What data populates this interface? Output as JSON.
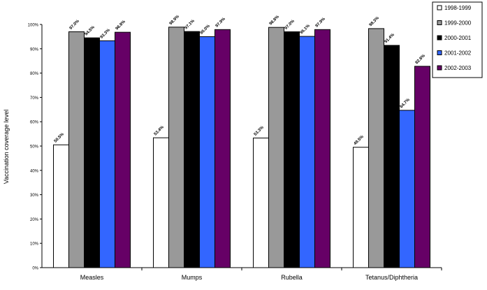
{
  "chart_data": {
    "type": "bar",
    "title": "",
    "xlabel": "",
    "ylabel": "Vaccination coverage level",
    "ylim": [
      0,
      100
    ],
    "yticks": [
      "0%",
      "10%",
      "20%",
      "30%",
      "40%",
      "50%",
      "60%",
      "70%",
      "80%",
      "90%",
      "100%"
    ],
    "grid": false,
    "legend_position": "top-right",
    "categories": [
      "Measles",
      "Mumps",
      "Rubella",
      "Tetanus/Diphtheria"
    ],
    "series": [
      {
        "name": "1998-1999",
        "color": "#ffffff",
        "values": [
          50.5,
          53.4,
          53.3,
          49.5
        ],
        "labels": [
          "50.5%",
          "53.4%",
          "53.3%",
          "49.5%"
        ]
      },
      {
        "name": "1999-2000",
        "color": "#999999",
        "values": [
          97.0,
          98.9,
          98.8,
          98.3
        ],
        "labels": [
          "97.0%",
          "98.9%",
          "98.8%",
          "98.3%"
        ]
      },
      {
        "name": "2000-2001",
        "color": "#000000",
        "values": [
          94.5,
          97.1,
          97.0,
          91.4
        ],
        "labels": [
          "94.5%",
          "97.1%",
          "97.0%",
          "91.4%"
        ]
      },
      {
        "name": "2001-2002",
        "color": "#3366ff",
        "values": [
          93.3,
          95.0,
          95.1,
          64.7
        ],
        "labels": [
          "93.3%",
          "95.0%",
          "95.1%",
          "64.7%"
        ]
      },
      {
        "name": "2002-2003",
        "color": "#660066",
        "values": [
          96.8,
          97.9,
          97.9,
          82.8
        ],
        "labels": [
          "96.8%",
          "97.9%",
          "97.9%",
          "82.8%"
        ]
      }
    ]
  }
}
